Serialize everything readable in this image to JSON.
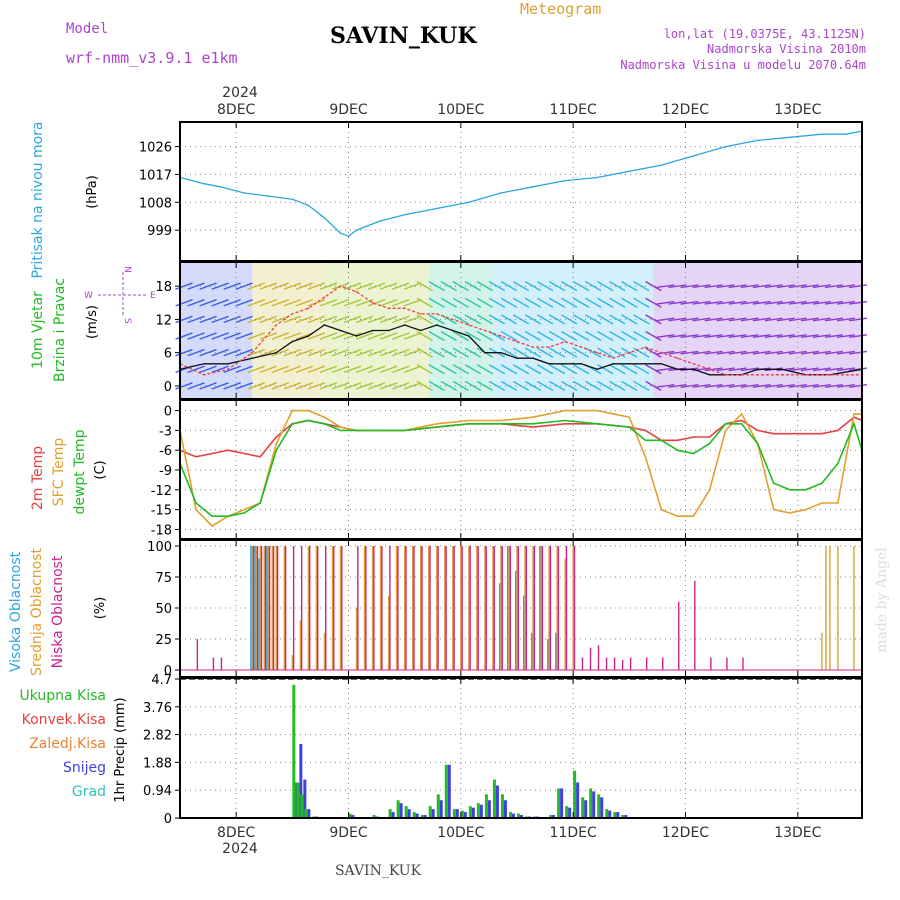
{
  "header": {
    "model_label": "Model",
    "model_name": "wrf-nmm_v3.9.1 e1km",
    "station": "SAVIN_KUK",
    "title": "Meteogram",
    "lonlat": "lon,lat (19.0375E, 43.1125N)",
    "elev": "Nadmorska Visina 2010m",
    "elev_model": "Nadmorska Visina u modelu 2070.64m",
    "year": "2024",
    "footer_station": "SAVIN_KUK",
    "credit": "made by Angel"
  },
  "days": [
    "8DEC",
    "9DEC",
    "10DEC",
    "11DEC",
    "12DEC",
    "13DEC"
  ],
  "colors": {
    "pressure": "#2aa7e0",
    "wind_label": "#22bb22",
    "compass": "#aa44cc",
    "t2m": "#e84040",
    "tsfc": "#e0a030",
    "tdew": "#22bb22",
    "cl_high": "#2aa7e0",
    "cl_mid": "#e0a030",
    "cl_low": "#cc2288",
    "pr_total": "#22bb22",
    "pr_conv": "#e84040",
    "pr_frz": "#f08030",
    "pr_snow": "#4040dd",
    "pr_hail": "#30c0c0"
  },
  "panels": {
    "pressure": {
      "label": "Pritisak na nivou mora",
      "unit": "(hPa)"
    },
    "wind": {
      "label1": "10m Vjetar",
      "label2": "Brzina i Pravac",
      "unit": "(m/s)",
      "compass": {
        "n": "N",
        "s": "S",
        "e": "E",
        "w": "W"
      }
    },
    "temp": {
      "l1": "2m Temp",
      "l2": "SFC Temp",
      "l3": "dewpt Temp",
      "unit": "(C)"
    },
    "cloud": {
      "l1": "Visoka Oblacnost",
      "l2": "Srednja Oblacnost",
      "l3": "Niska Oblacnost",
      "unit": "(%)"
    },
    "precip": {
      "unit": "1hr Precip (mm)",
      "legend": [
        "Ukupna Kisa",
        "Konvek.Kisa",
        "Zaledj.Kisa",
        "Snijeg",
        "Grad"
      ]
    }
  },
  "chart_data": [
    {
      "type": "line",
      "name": "pressure",
      "ylim": [
        990,
        1032
      ],
      "yticks": [
        "999",
        "1008",
        "1017",
        "1026"
      ],
      "x_hours": [
        0,
        6,
        10,
        16,
        22,
        28,
        32,
        36,
        40,
        42,
        44,
        46,
        50,
        56,
        64,
        72,
        80,
        88,
        96,
        104,
        112,
        120,
        128,
        136,
        144,
        152,
        160,
        166,
        170
      ],
      "series": [
        {
          "values": [
            1016,
            1014,
            1013,
            1011,
            1010,
            1009,
            1007,
            1003,
            998,
            997,
            999,
            1000,
            1002,
            1004,
            1006,
            1008,
            1011,
            1013,
            1015,
            1016,
            1018,
            1020,
            1023,
            1026,
            1028,
            1029,
            1030,
            1030,
            1031
          ]
        }
      ]
    },
    {
      "type": "line",
      "name": "wind",
      "ylim": [
        -2,
        22
      ],
      "yticks": [
        "0",
        "6",
        "12",
        "18"
      ],
      "x_hours": [
        0,
        6,
        12,
        18,
        24,
        28,
        32,
        36,
        40,
        44,
        48,
        52,
        56,
        60,
        64,
        68,
        72,
        76,
        80,
        84,
        88,
        92,
        96,
        100,
        104,
        108,
        112,
        116,
        120,
        124,
        128,
        132,
        136,
        140,
        144,
        150,
        156,
        162,
        170
      ],
      "series": [
        {
          "values": [
            3,
            4,
            4,
            5,
            6,
            8,
            9,
            11,
            10,
            9,
            10,
            10,
            11,
            10,
            11,
            10,
            9,
            6,
            6,
            5,
            5,
            4,
            4,
            4,
            3,
            4,
            4,
            4,
            4,
            3,
            3,
            2,
            2,
            2,
            3,
            3,
            2,
            2,
            3
          ]
        },
        {
          "values": [
            4,
            2,
            3,
            6,
            11,
            13,
            14,
            16,
            18,
            17,
            15,
            14,
            14,
            13,
            13,
            12,
            11,
            10,
            9,
            8,
            7,
            7,
            8,
            7,
            6,
            5,
            6,
            7,
            6,
            5,
            4,
            3,
            2,
            2,
            2,
            2,
            2,
            2,
            2
          ]
        }
      ]
    },
    {
      "type": "line",
      "name": "temperature",
      "ylim": [
        -19,
        1
      ],
      "yticks": [
        "-18",
        "-15",
        "-12",
        "-9",
        "-6",
        "-3",
        "0"
      ],
      "x_hours": [
        0,
        4,
        8,
        12,
        16,
        20,
        24,
        28,
        32,
        36,
        40,
        44,
        48,
        56,
        64,
        72,
        80,
        88,
        96,
        104,
        112,
        116,
        120,
        124,
        128,
        132,
        136,
        140,
        144,
        148,
        152,
        156,
        160,
        164,
        168,
        170
      ],
      "series": [
        {
          "name": "2m Temp",
          "values": [
            -6,
            -7,
            -6.5,
            -6,
            -6.5,
            -7,
            -4,
            -2,
            -1.5,
            -2,
            -2.5,
            -3,
            -3,
            -3,
            -2.5,
            -2,
            -2,
            -2.5,
            -2,
            -2,
            -2.5,
            -3,
            -4.5,
            -4.5,
            -4,
            -4,
            -2,
            -1.5,
            -3,
            -3.5,
            -3.5,
            -3.5,
            -3.5,
            -3,
            -1,
            -1.5
          ]
        },
        {
          "name": "SFC Temp",
          "values": [
            -3,
            -15,
            -17.5,
            -16,
            -15,
            -14,
            -5,
            0,
            0,
            -1,
            -2.5,
            -3,
            -3,
            -3,
            -2,
            -1.5,
            -1.5,
            -1,
            0,
            0,
            -1,
            -7,
            -15,
            -16,
            -16,
            -12,
            -3,
            -0.5,
            -5,
            -15,
            -15.5,
            -15,
            -14,
            -14,
            -0.5,
            -0.5
          ]
        },
        {
          "name": "dewpt Temp",
          "values": [
            -8,
            -14,
            -16,
            -16,
            -15.5,
            -14,
            -6,
            -2,
            -1.5,
            -2,
            -3,
            -3,
            -3,
            -3,
            -2.5,
            -2,
            -2,
            -2,
            -1.5,
            -2,
            -2.5,
            -4.5,
            -4.5,
            -6,
            -6.5,
            -5,
            -2,
            -2,
            -5,
            -11,
            -12,
            -12,
            -11,
            -8,
            -2,
            -6
          ]
        }
      ]
    },
    {
      "type": "bar",
      "name": "cloud",
      "ylim": [
        0,
        100
      ],
      "yticks": [
        "0",
        "25",
        "50",
        "75",
        "100"
      ],
      "x_hours": [
        4,
        8,
        10,
        16,
        18,
        19,
        20,
        21,
        22,
        23,
        24,
        26,
        28,
        30,
        32,
        34,
        36,
        38,
        40,
        44,
        46,
        48,
        50,
        52,
        54,
        56,
        58,
        60,
        62,
        64,
        66,
        68,
        70,
        72,
        74,
        76,
        78,
        80,
        82,
        84,
        86,
        88,
        90,
        92,
        94,
        96,
        98,
        100,
        102,
        104,
        106,
        108,
        110,
        112,
        116,
        120,
        124,
        128,
        132,
        136,
        140,
        144,
        148,
        158,
        160,
        161,
        162,
        164,
        168
      ],
      "series": [
        {
          "name": "Visoka Oblacnost",
          "values": [
            0,
            0,
            0,
            0,
            100,
            100,
            90,
            0,
            100,
            0,
            0,
            0,
            0,
            0,
            0,
            0,
            0,
            0,
            0,
            0,
            0,
            0,
            0,
            0,
            0,
            0,
            0,
            0,
            0,
            0,
            0,
            0,
            0,
            0,
            0,
            0,
            0,
            70,
            100,
            80,
            60,
            30,
            100,
            25,
            30,
            0,
            0,
            0,
            0,
            0,
            0,
            0,
            0,
            0,
            0,
            0,
            0,
            0,
            0,
            0,
            0,
            0,
            0,
            0,
            0,
            0,
            0,
            0,
            0
          ]
        },
        {
          "name": "Srednja Oblacnost",
          "values": [
            0,
            0,
            0,
            0,
            100,
            100,
            100,
            100,
            100,
            100,
            100,
            100,
            12,
            40,
            100,
            100,
            30,
            100,
            100,
            50,
            100,
            100,
            100,
            60,
            100,
            100,
            100,
            100,
            100,
            100,
            100,
            100,
            100,
            100,
            100,
            100,
            100,
            100,
            100,
            100,
            100,
            100,
            100,
            100,
            100,
            90,
            100,
            0,
            0,
            0,
            0,
            0,
            0,
            0,
            0,
            0,
            0,
            0,
            0,
            0,
            0,
            0,
            0,
            0,
            30,
            100,
            100,
            100,
            100
          ]
        },
        {
          "name": "Niska Oblacnost",
          "values": [
            25,
            10,
            10,
            0,
            100,
            100,
            100,
            100,
            100,
            100,
            100,
            100,
            100,
            100,
            100,
            100,
            100,
            100,
            100,
            100,
            100,
            100,
            100,
            100,
            100,
            100,
            100,
            100,
            100,
            100,
            100,
            100,
            100,
            100,
            100,
            100,
            100,
            100,
            100,
            100,
            100,
            100,
            100,
            100,
            100,
            100,
            100,
            10,
            18,
            20,
            10,
            10,
            8,
            10,
            10,
            10,
            55,
            72,
            10,
            10,
            10,
            0,
            0,
            0,
            0,
            0,
            0,
            0,
            0
          ]
        }
      ]
    },
    {
      "type": "bar",
      "name": "precip",
      "ylim": [
        0,
        4.7
      ],
      "yticks": [
        "0",
        "0.94",
        "1.88",
        "2.82",
        "3.76",
        "4.7"
      ],
      "x_hours": [
        28,
        29,
        30,
        31,
        33,
        35,
        42,
        48,
        52,
        54,
        56,
        58,
        60,
        62,
        64,
        66,
        68,
        70,
        72,
        74,
        76,
        78,
        80,
        82,
        84,
        86,
        88,
        92,
        94,
        96,
        98,
        100,
        102,
        104,
        106,
        108,
        110
      ],
      "series": [
        {
          "name": "Ukupna Kisa",
          "values": [
            4.5,
            1.2,
            0.8,
            0.3,
            0.05,
            0.02,
            0.15,
            0.1,
            0.3,
            0.6,
            0.4,
            0.2,
            0.1,
            0.4,
            0.8,
            1.8,
            0.3,
            0.25,
            0.4,
            0.5,
            0.8,
            1.3,
            0.8,
            0.2,
            0.15,
            0.05,
            0.05,
            0.1,
            1.0,
            0.4,
            1.6,
            0.7,
            1.0,
            0.8,
            0.3,
            0.2,
            0.1
          ]
        },
        {
          "name": "Snijeg",
          "values": [
            1.2,
            2.5,
            1.3,
            0.3,
            0.05,
            0.02,
            0.1,
            0.05,
            0.2,
            0.5,
            0.3,
            0.15,
            0.1,
            0.3,
            0.6,
            1.8,
            0.3,
            0.2,
            0.35,
            0.45,
            0.6,
            1.1,
            0.6,
            0.15,
            0.1,
            0.05,
            0.05,
            0.1,
            1.0,
            0.35,
            1.2,
            0.6,
            0.9,
            0.7,
            0.25,
            0.2,
            0.1
          ]
        }
      ]
    }
  ]
}
